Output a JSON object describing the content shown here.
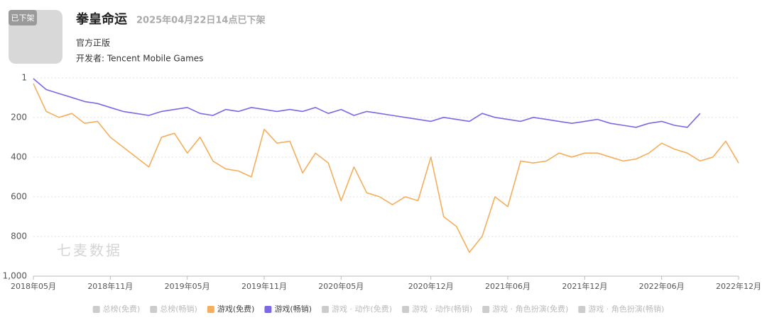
{
  "app": {
    "icon_badge": "已下架",
    "title": "拳皇命运",
    "status": "2025年04月22日14点已下架",
    "tag": "官方正版",
    "developer": "开发者: Tencent Mobile Games"
  },
  "chart_data": {
    "type": "line",
    "watermark": "七麦数据",
    "reversed": true,
    "grid": true,
    "x": [
      "2018-05",
      "2018-06",
      "2018-07",
      "2018-08",
      "2018-09",
      "2018-10",
      "2018-11",
      "2018-12",
      "2019-01",
      "2019-02",
      "2019-03",
      "2019-04",
      "2019-05",
      "2019-06",
      "2019-07",
      "2019-08",
      "2019-09",
      "2019-10",
      "2019-11",
      "2019-12",
      "2020-01",
      "2020-02",
      "2020-03",
      "2020-04",
      "2020-05",
      "2020-06",
      "2020-07",
      "2020-08",
      "2020-09",
      "2020-10",
      "2020-11",
      "2020-12",
      "2021-01",
      "2021-02",
      "2021-03",
      "2021-04",
      "2021-05",
      "2021-06",
      "2021-07",
      "2021-08",
      "2021-09",
      "2021-10",
      "2021-11",
      "2021-12",
      "2022-01",
      "2022-02",
      "2022-03",
      "2022-04",
      "2022-05",
      "2022-06",
      "2022-07",
      "2022-08",
      "2022-09",
      "2022-10",
      "2022-11",
      "2022-12"
    ],
    "xticks": [
      {
        "value": "2018-05",
        "label": "2018年05月"
      },
      {
        "value": "2018-11",
        "label": "2018年11月"
      },
      {
        "value": "2019-05",
        "label": "2019年05月"
      },
      {
        "value": "2019-11",
        "label": "2019年11月"
      },
      {
        "value": "2020-05",
        "label": "2020年05月"
      },
      {
        "value": "2020-12",
        "label": "2020年12月"
      },
      {
        "value": "2021-06",
        "label": "2021年06月"
      },
      {
        "value": "2021-12",
        "label": "2021年12月"
      },
      {
        "value": "2022-06",
        "label": "2022年06月"
      },
      {
        "value": "2022-12",
        "label": "2022年12月"
      }
    ],
    "ylim": [
      1,
      1000
    ],
    "yticks": [
      1,
      200,
      400,
      600,
      800,
      {
        "value": 1000,
        "label": "1,000"
      }
    ],
    "series": [
      {
        "name": "游戏(免费)",
        "color": "#f5ae5b",
        "values": [
          30,
          170,
          200,
          180,
          230,
          220,
          300,
          350,
          400,
          450,
          300,
          280,
          380,
          300,
          420,
          460,
          470,
          500,
          260,
          330,
          320,
          480,
          380,
          430,
          620,
          450,
          580,
          600,
          640,
          600,
          620,
          400,
          700,
          750,
          880,
          800,
          600,
          650,
          420,
          430,
          420,
          380,
          400,
          380,
          380,
          400,
          420,
          410,
          380,
          330,
          360,
          380,
          420,
          400,
          320,
          430
        ]
      },
      {
        "name": "游戏(畅销)",
        "color": "#7b68e8",
        "values": [
          5,
          60,
          80,
          100,
          120,
          130,
          150,
          170,
          180,
          190,
          170,
          160,
          150,
          180,
          190,
          160,
          170,
          150,
          160,
          170,
          160,
          170,
          150,
          180,
          160,
          190,
          170,
          180,
          190,
          200,
          210,
          220,
          200,
          210,
          220,
          180,
          200,
          210,
          220,
          200,
          210,
          220,
          230,
          220,
          210,
          230,
          240,
          250,
          230,
          220,
          240,
          250,
          180,
          null,
          null,
          null
        ]
      }
    ],
    "legend_inactive": [
      "总榜(免费)",
      "总榜(畅销)",
      "游戏 · 动作(免费)",
      "游戏 · 动作(畅销)",
      "游戏 · 角色扮演(免费)",
      "游戏 · 角色扮演(畅销)"
    ]
  }
}
